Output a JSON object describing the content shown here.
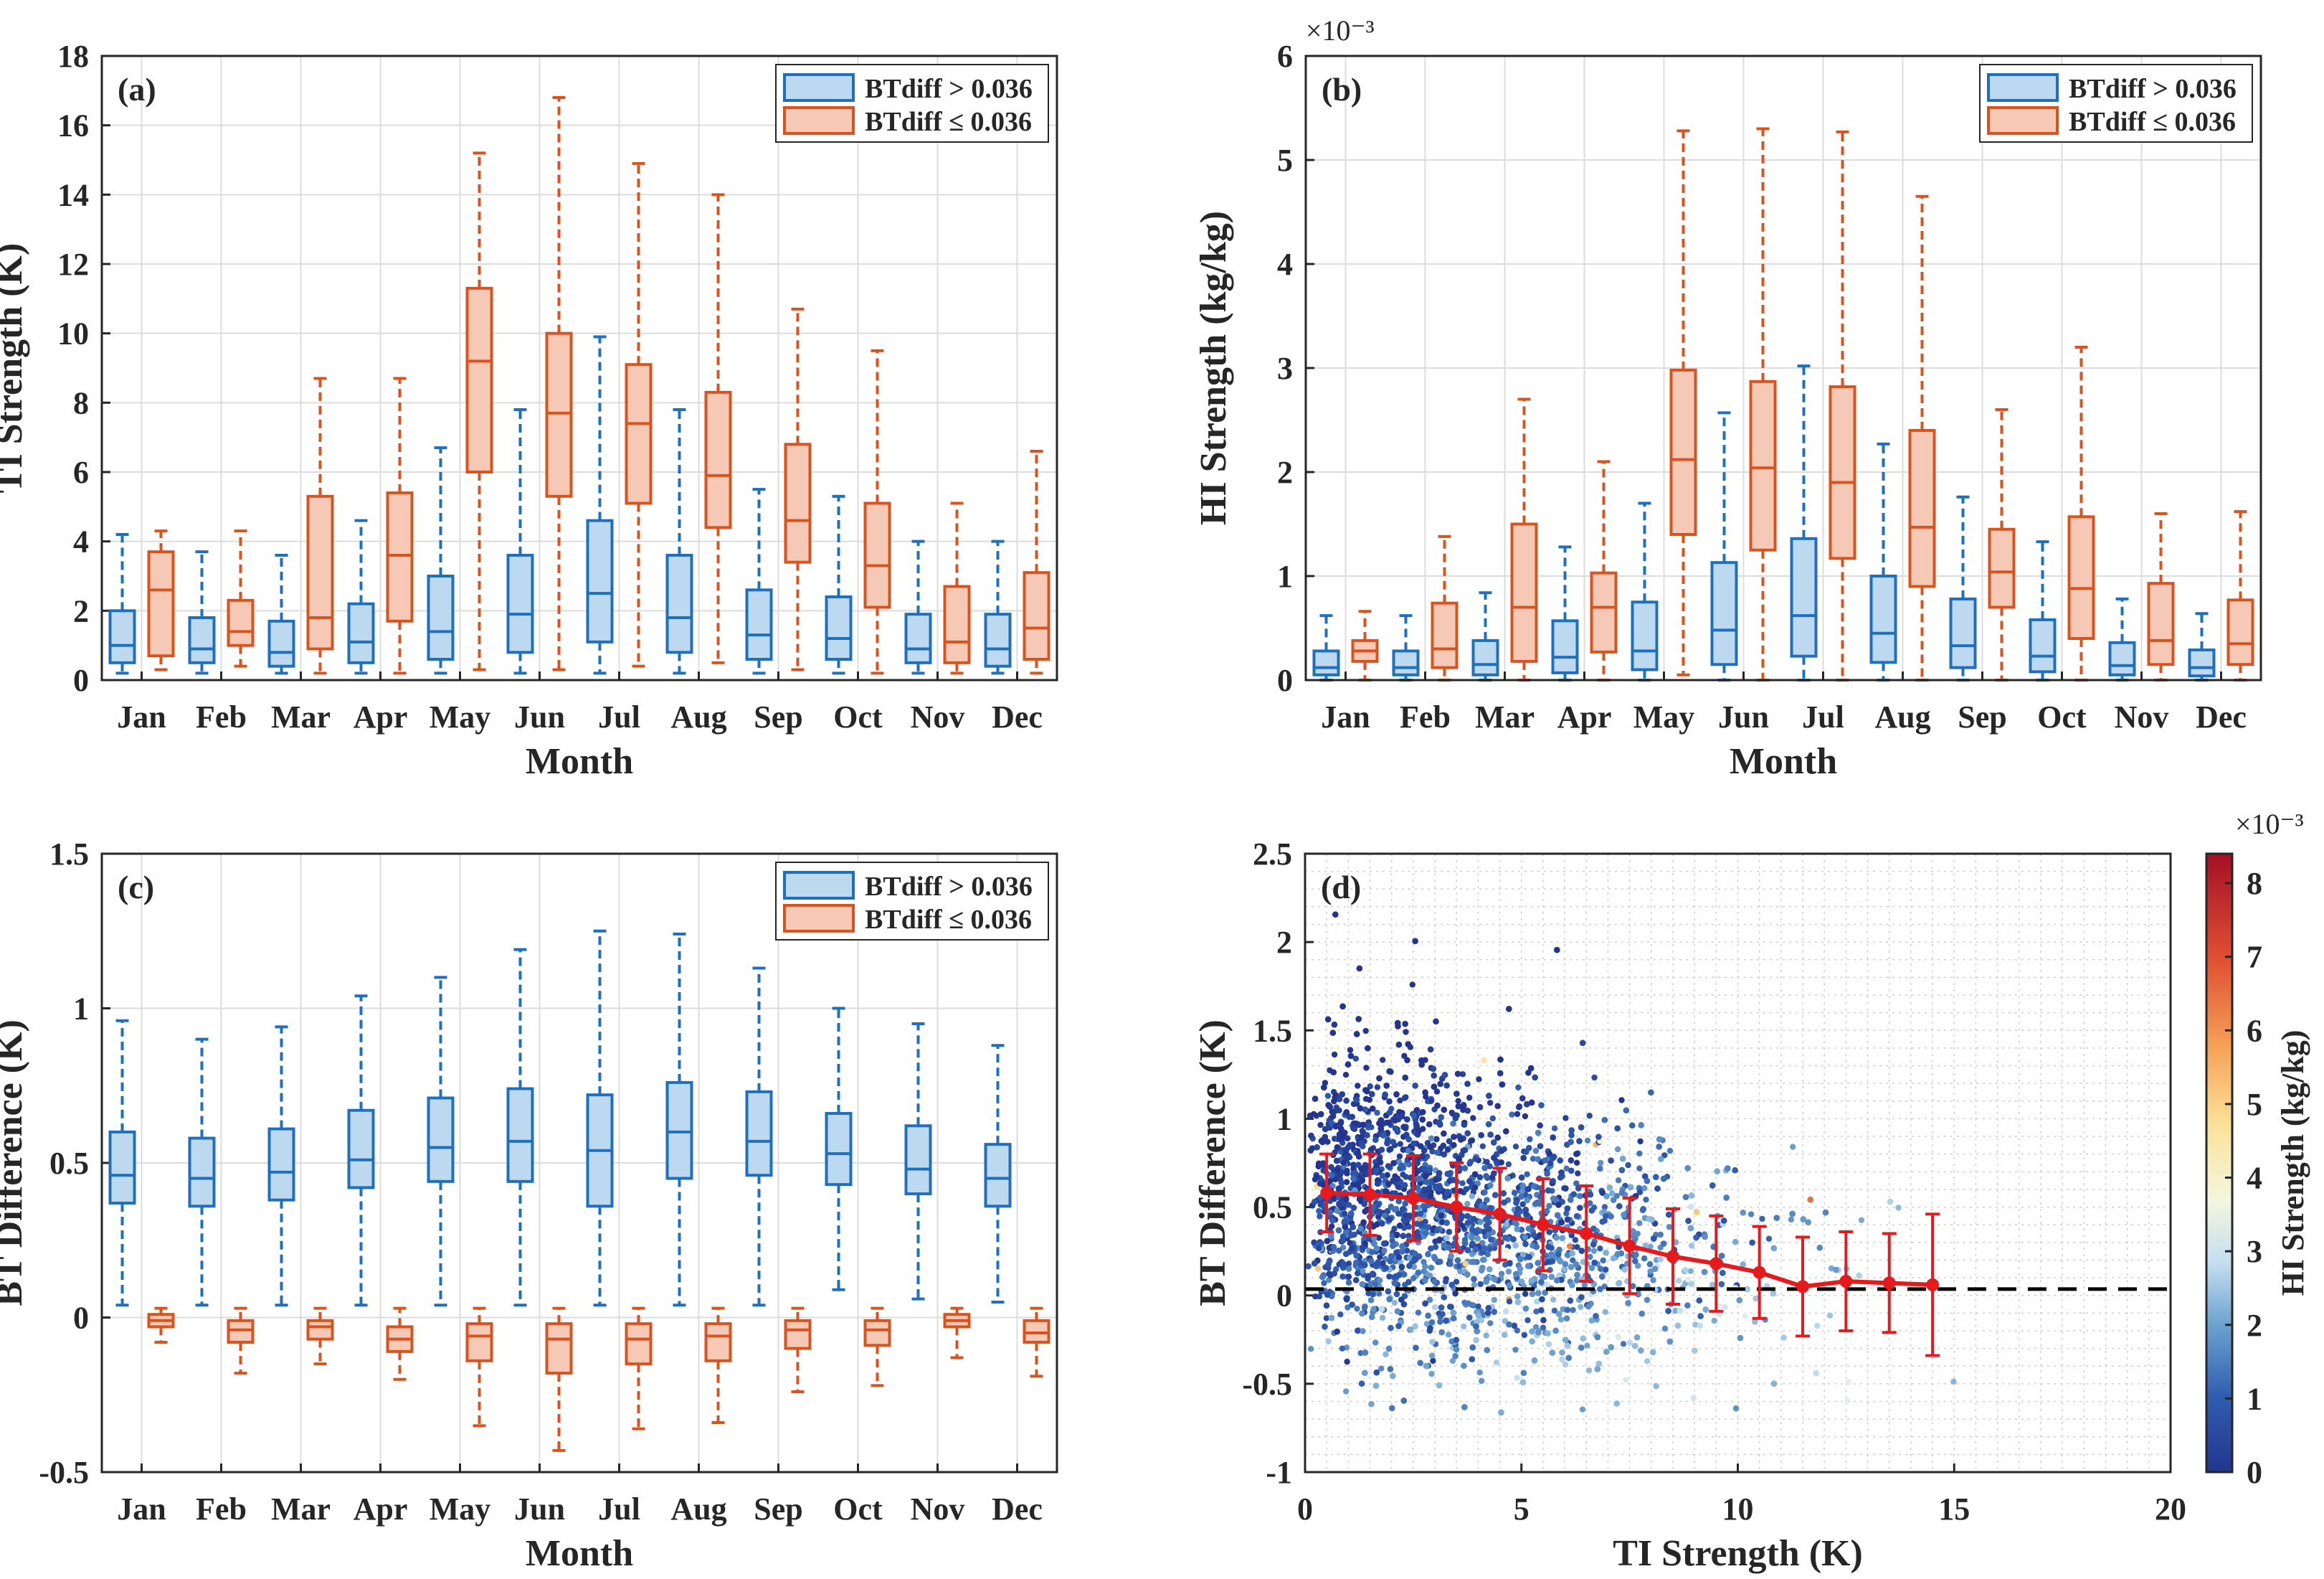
{
  "colors": {
    "blue_edge": "#1f6fbf",
    "blue_fill": "#bcd9ef",
    "orange_edge": "#d9531e",
    "orange_fill": "#f5c9b6",
    "red_line": "#e41a1c",
    "zero_line": "#000000"
  },
  "legend": {
    "high": "BTdiff > 0.036",
    "low": "BTdiff ≤ 0.036"
  },
  "chart_data": [
    {
      "id": "a",
      "panel_label": "(a)",
      "type": "box",
      "xlabel": "Month",
      "ylabel": "TI Strength (K)",
      "exponent_label": "",
      "ylim": [
        0,
        18
      ],
      "yticks": [
        0,
        2,
        4,
        6,
        8,
        10,
        12,
        14,
        16,
        18
      ],
      "ytick_labels": [
        "0",
        "2",
        "4",
        "6",
        "8",
        "10",
        "12",
        "14",
        "16",
        "18"
      ],
      "categories": [
        "Jan",
        "Feb",
        "Mar",
        "Apr",
        "May",
        "Jun",
        "Jul",
        "Aug",
        "Sep",
        "Oct",
        "Nov",
        "Dec"
      ],
      "series": [
        {
          "name": "BTdiff > 0.036",
          "color": "blue",
          "boxes": [
            {
              "min": 0.2,
              "q1": 0.5,
              "median": 1.0,
              "q3": 2.0,
              "max": 4.2
            },
            {
              "min": 0.2,
              "q1": 0.5,
              "median": 0.9,
              "q3": 1.8,
              "max": 3.7
            },
            {
              "min": 0.2,
              "q1": 0.4,
              "median": 0.8,
              "q3": 1.7,
              "max": 3.6
            },
            {
              "min": 0.2,
              "q1": 0.5,
              "median": 1.1,
              "q3": 2.2,
              "max": 4.6
            },
            {
              "min": 0.2,
              "q1": 0.6,
              "median": 1.4,
              "q3": 3.0,
              "max": 6.7
            },
            {
              "min": 0.2,
              "q1": 0.8,
              "median": 1.9,
              "q3": 3.6,
              "max": 7.8
            },
            {
              "min": 0.2,
              "q1": 1.1,
              "median": 2.5,
              "q3": 4.6,
              "max": 9.9
            },
            {
              "min": 0.2,
              "q1": 0.8,
              "median": 1.8,
              "q3": 3.6,
              "max": 7.8
            },
            {
              "min": 0.2,
              "q1": 0.6,
              "median": 1.3,
              "q3": 2.6,
              "max": 5.5
            },
            {
              "min": 0.2,
              "q1": 0.6,
              "median": 1.2,
              "q3": 2.4,
              "max": 5.3
            },
            {
              "min": 0.2,
              "q1": 0.5,
              "median": 0.9,
              "q3": 1.9,
              "max": 4.0
            },
            {
              "min": 0.2,
              "q1": 0.4,
              "median": 0.9,
              "q3": 1.9,
              "max": 4.0
            }
          ]
        },
        {
          "name": "BTdiff ≤ 0.036",
          "color": "orange",
          "boxes": [
            {
              "min": 0.3,
              "q1": 0.7,
              "median": 2.6,
              "q3": 3.7,
              "max": 4.3
            },
            {
              "min": 0.4,
              "q1": 1.0,
              "median": 1.4,
              "q3": 2.3,
              "max": 4.3
            },
            {
              "min": 0.2,
              "q1": 0.9,
              "median": 1.8,
              "q3": 5.3,
              "max": 8.7
            },
            {
              "min": 0.2,
              "q1": 1.7,
              "median": 3.6,
              "q3": 5.4,
              "max": 8.7
            },
            {
              "min": 0.3,
              "q1": 6.0,
              "median": 9.2,
              "q3": 11.3,
              "max": 15.2
            },
            {
              "min": 0.3,
              "q1": 5.3,
              "median": 7.7,
              "q3": 10.0,
              "max": 16.8
            },
            {
              "min": 0.4,
              "q1": 5.1,
              "median": 7.4,
              "q3": 9.1,
              "max": 14.9
            },
            {
              "min": 0.5,
              "q1": 4.4,
              "median": 5.9,
              "q3": 8.3,
              "max": 14.0
            },
            {
              "min": 0.3,
              "q1": 3.4,
              "median": 4.6,
              "q3": 6.8,
              "max": 10.7
            },
            {
              "min": 0.2,
              "q1": 2.1,
              "median": 3.3,
              "q3": 5.1,
              "max": 9.5
            },
            {
              "min": 0.2,
              "q1": 0.5,
              "median": 1.1,
              "q3": 2.7,
              "max": 5.1
            },
            {
              "min": 0.2,
              "q1": 0.6,
              "median": 1.5,
              "q3": 3.1,
              "max": 6.6
            }
          ]
        }
      ]
    },
    {
      "id": "b",
      "panel_label": "(b)",
      "type": "box",
      "xlabel": "Month",
      "ylabel": "HI Strength (kg/kg)",
      "exponent_label": "×10⁻³",
      "ylim": [
        0,
        6
      ],
      "yticks": [
        0,
        1,
        2,
        3,
        4,
        5,
        6
      ],
      "ytick_labels": [
        "0",
        "1",
        "2",
        "3",
        "4",
        "5",
        "6"
      ],
      "categories": [
        "Jan",
        "Feb",
        "Mar",
        "Apr",
        "May",
        "Jun",
        "Jul",
        "Aug",
        "Sep",
        "Oct",
        "Nov",
        "Dec"
      ],
      "series": [
        {
          "name": "BTdiff > 0.036",
          "color": "blue",
          "boxes": [
            {
              "min": 0.0,
              "q1": 0.05,
              "median": 0.12,
              "q3": 0.28,
              "max": 0.62
            },
            {
              "min": 0.0,
              "q1": 0.05,
              "median": 0.12,
              "q3": 0.28,
              "max": 0.62
            },
            {
              "min": 0.0,
              "q1": 0.05,
              "median": 0.15,
              "q3": 0.38,
              "max": 0.84
            },
            {
              "min": 0.0,
              "q1": 0.07,
              "median": 0.22,
              "q3": 0.57,
              "max": 1.28
            },
            {
              "min": 0.0,
              "q1": 0.1,
              "median": 0.28,
              "q3": 0.75,
              "max": 1.7
            },
            {
              "min": 0.0,
              "q1": 0.15,
              "median": 0.48,
              "q3": 1.13,
              "max": 2.57
            },
            {
              "min": 0.0,
              "q1": 0.23,
              "median": 0.62,
              "q3": 1.36,
              "max": 3.02
            },
            {
              "min": 0.0,
              "q1": 0.17,
              "median": 0.45,
              "q3": 1.0,
              "max": 2.27
            },
            {
              "min": 0.0,
              "q1": 0.12,
              "median": 0.33,
              "q3": 0.78,
              "max": 1.76
            },
            {
              "min": 0.0,
              "q1": 0.08,
              "median": 0.23,
              "q3": 0.58,
              "max": 1.33
            },
            {
              "min": 0.0,
              "q1": 0.05,
              "median": 0.14,
              "q3": 0.36,
              "max": 0.78
            },
            {
              "min": 0.0,
              "q1": 0.04,
              "median": 0.12,
              "q3": 0.29,
              "max": 0.64
            }
          ]
        },
        {
          "name": "BTdiff ≤ 0.036",
          "color": "orange",
          "boxes": [
            {
              "min": 0.0,
              "q1": 0.18,
              "median": 0.28,
              "q3": 0.38,
              "max": 0.66
            },
            {
              "min": 0.0,
              "q1": 0.12,
              "median": 0.3,
              "q3": 0.74,
              "max": 1.38
            },
            {
              "min": 0.0,
              "q1": 0.18,
              "median": 0.7,
              "q3": 1.5,
              "max": 2.7
            },
            {
              "min": 0.0,
              "q1": 0.27,
              "median": 0.7,
              "q3": 1.03,
              "max": 2.1
            },
            {
              "min": 0.05,
              "q1": 1.4,
              "median": 2.12,
              "q3": 2.98,
              "max": 5.28
            },
            {
              "min": 0.0,
              "q1": 1.25,
              "median": 2.04,
              "q3": 2.87,
              "max": 5.3
            },
            {
              "min": 0.0,
              "q1": 1.17,
              "median": 1.9,
              "q3": 2.82,
              "max": 5.27
            },
            {
              "min": 0.0,
              "q1": 0.9,
              "median": 1.47,
              "q3": 2.4,
              "max": 4.65
            },
            {
              "min": 0.0,
              "q1": 0.7,
              "median": 1.04,
              "q3": 1.45,
              "max": 2.6
            },
            {
              "min": 0.0,
              "q1": 0.4,
              "median": 0.88,
              "q3": 1.57,
              "max": 3.2
            },
            {
              "min": 0.0,
              "q1": 0.15,
              "median": 0.38,
              "q3": 0.93,
              "max": 1.6
            },
            {
              "min": 0.0,
              "q1": 0.15,
              "median": 0.35,
              "q3": 0.77,
              "max": 1.62
            }
          ]
        }
      ]
    },
    {
      "id": "c",
      "panel_label": "(c)",
      "type": "box",
      "xlabel": "Month",
      "ylabel": "BT Difference (K)",
      "exponent_label": "",
      "ylim": [
        -0.5,
        1.5
      ],
      "yticks": [
        -0.5,
        0,
        0.5,
        1,
        1.5
      ],
      "ytick_labels": [
        "-0.5",
        "0",
        "0.5",
        "1",
        "1.5"
      ],
      "categories": [
        "Jan",
        "Feb",
        "Mar",
        "Apr",
        "May",
        "Jun",
        "Jul",
        "Aug",
        "Sep",
        "Oct",
        "Nov",
        "Dec"
      ],
      "series": [
        {
          "name": "BTdiff > 0.036",
          "color": "blue",
          "boxes": [
            {
              "min": 0.04,
              "q1": 0.37,
              "median": 0.46,
              "q3": 0.6,
              "max": 0.96
            },
            {
              "min": 0.04,
              "q1": 0.36,
              "median": 0.45,
              "q3": 0.58,
              "max": 0.9
            },
            {
              "min": 0.04,
              "q1": 0.38,
              "median": 0.47,
              "q3": 0.61,
              "max": 0.94
            },
            {
              "min": 0.04,
              "q1": 0.42,
              "median": 0.51,
              "q3": 0.67,
              "max": 1.04
            },
            {
              "min": 0.04,
              "q1": 0.44,
              "median": 0.55,
              "q3": 0.71,
              "max": 1.1
            },
            {
              "min": 0.04,
              "q1": 0.44,
              "median": 0.57,
              "q3": 0.74,
              "max": 1.19
            },
            {
              "min": 0.04,
              "q1": 0.36,
              "median": 0.54,
              "q3": 0.72,
              "max": 1.25
            },
            {
              "min": 0.04,
              "q1": 0.45,
              "median": 0.6,
              "q3": 0.76,
              "max": 1.24
            },
            {
              "min": 0.04,
              "q1": 0.46,
              "median": 0.57,
              "q3": 0.73,
              "max": 1.13
            },
            {
              "min": 0.09,
              "q1": 0.43,
              "median": 0.53,
              "q3": 0.66,
              "max": 1.0
            },
            {
              "min": 0.06,
              "q1": 0.4,
              "median": 0.48,
              "q3": 0.62,
              "max": 0.95
            },
            {
              "min": 0.05,
              "q1": 0.36,
              "median": 0.45,
              "q3": 0.56,
              "max": 0.88
            }
          ]
        },
        {
          "name": "BTdiff ≤ 0.036",
          "color": "orange",
          "boxes": [
            {
              "min": -0.08,
              "q1": -0.03,
              "median": -0.01,
              "q3": 0.01,
              "max": 0.03
            },
            {
              "min": -0.18,
              "q1": -0.08,
              "median": -0.04,
              "q3": -0.01,
              "max": 0.03
            },
            {
              "min": -0.15,
              "q1": -0.07,
              "median": -0.03,
              "q3": -0.01,
              "max": 0.03
            },
            {
              "min": -0.2,
              "q1": -0.11,
              "median": -0.07,
              "q3": -0.03,
              "max": 0.03
            },
            {
              "min": -0.35,
              "q1": -0.14,
              "median": -0.06,
              "q3": -0.02,
              "max": 0.03
            },
            {
              "min": -0.43,
              "q1": -0.18,
              "median": -0.07,
              "q3": -0.02,
              "max": 0.03
            },
            {
              "min": -0.36,
              "q1": -0.15,
              "median": -0.07,
              "q3": -0.02,
              "max": 0.03
            },
            {
              "min": -0.34,
              "q1": -0.14,
              "median": -0.06,
              "q3": -0.02,
              "max": 0.03
            },
            {
              "min": -0.24,
              "q1": -0.1,
              "median": -0.04,
              "q3": -0.01,
              "max": 0.03
            },
            {
              "min": -0.22,
              "q1": -0.09,
              "median": -0.04,
              "q3": -0.01,
              "max": 0.03
            },
            {
              "min": -0.13,
              "q1": -0.03,
              "median": -0.01,
              "q3": 0.01,
              "max": 0.03
            },
            {
              "min": -0.19,
              "q1": -0.08,
              "median": -0.05,
              "q3": -0.01,
              "max": 0.03
            }
          ]
        }
      ]
    },
    {
      "id": "d",
      "panel_label": "(d)",
      "type": "scatter",
      "xlabel": "TI Strength (K)",
      "ylabel": "BT Difference (K)",
      "xlim": [
        0,
        20
      ],
      "ylim": [
        -1,
        2.5
      ],
      "xticks": [
        0,
        5,
        10,
        15,
        20
      ],
      "xtick_labels": [
        "0",
        "5",
        "10",
        "15",
        "20"
      ],
      "yticks": [
        -1,
        -0.5,
        0,
        0.5,
        1,
        1.5,
        2,
        2.5
      ],
      "ytick_labels": [
        "-1",
        "-0.5",
        "0",
        "0.5",
        "1",
        "1.5",
        "2",
        "2.5"
      ],
      "reference_line_y": 0.036,
      "colorbar": {
        "label": "HI Strength (kg/kg)",
        "exponent_label": "×10⁻³",
        "min": 0,
        "max": 8.4,
        "ticks": [
          0,
          1,
          2,
          3,
          4,
          5,
          6,
          7,
          8
        ],
        "tick_labels": [
          "0",
          "1",
          "2",
          "3",
          "4",
          "5",
          "6",
          "7",
          "8"
        ],
        "colormap": "blue-white-yellow-red (diverging)"
      },
      "scatter_description": "dense cloud of several thousand points, TI 0–17.5 K, BT difference roughly -0.7 to 2.2 K, colored by HI strength",
      "binned_mean": {
        "x": [
          0.5,
          1.5,
          2.5,
          3.5,
          4.5,
          5.5,
          6.5,
          7.5,
          8.5,
          9.5,
          10.5,
          11.5,
          12.5,
          13.5,
          14.5
        ],
        "mean": [
          0.58,
          0.57,
          0.55,
          0.5,
          0.46,
          0.4,
          0.35,
          0.28,
          0.22,
          0.18,
          0.13,
          0.05,
          0.08,
          0.07,
          0.06
        ],
        "std": [
          0.22,
          0.23,
          0.24,
          0.25,
          0.26,
          0.26,
          0.27,
          0.27,
          0.27,
          0.27,
          0.26,
          0.28,
          0.28,
          0.28,
          0.4
        ]
      }
    }
  ]
}
